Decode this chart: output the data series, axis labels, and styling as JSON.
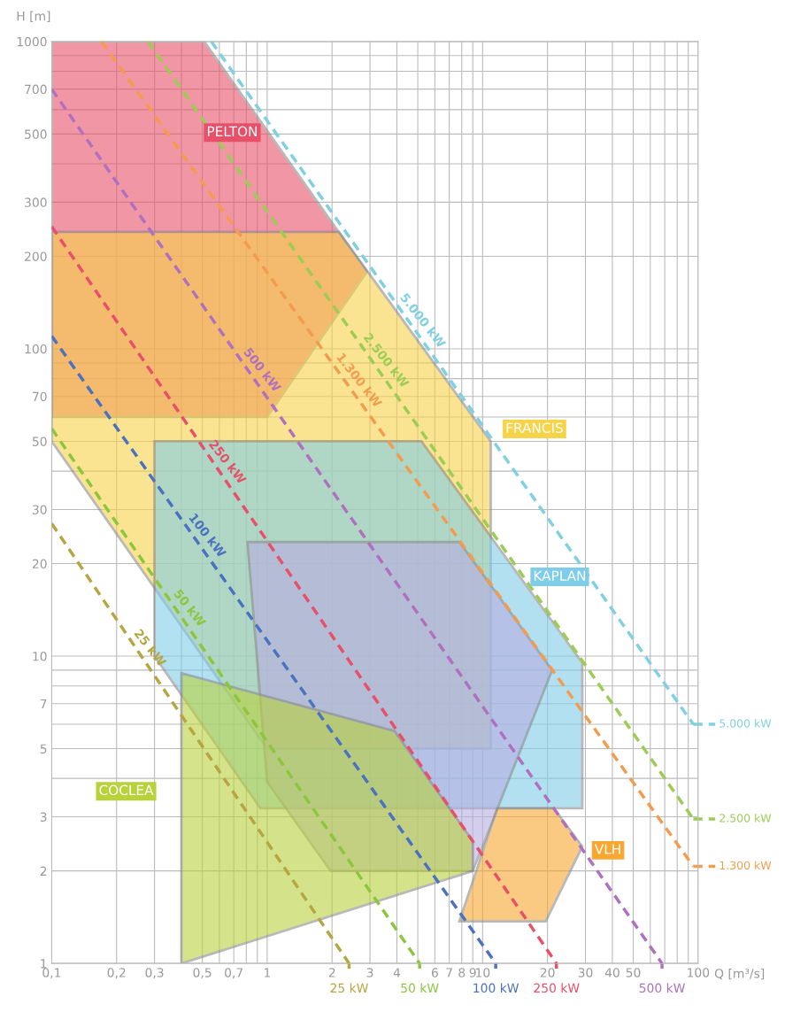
{
  "chart_data": {
    "type": "area",
    "xlabel": "Q [m³/s]",
    "ylabel": "H [m]",
    "log": "xy",
    "grid": true,
    "legend": "right",
    "xlim": [
      0.1,
      100
    ],
    "ylim": [
      1,
      1000
    ],
    "xticks": [
      {
        "value": 0.1,
        "label": "0,1"
      },
      {
        "value": 0.2,
        "label": "0,2"
      },
      {
        "value": 0.3,
        "label": "0,3"
      },
      {
        "value": 0.4,
        "label": null
      },
      {
        "value": 0.5,
        "label": "0,5"
      },
      {
        "value": 0.6,
        "label": null
      },
      {
        "value": 0.7,
        "label": "0,7"
      },
      {
        "value": 0.8,
        "label": null
      },
      {
        "value": 0.9,
        "label": null
      },
      1,
      2,
      3,
      4,
      {
        "value": 5,
        "label": null
      },
      6,
      7,
      8,
      9,
      10,
      20,
      30,
      40,
      50,
      {
        "value": 60,
        "label": null
      },
      {
        "value": 70,
        "label": null
      },
      {
        "value": 80,
        "label": null
      },
      {
        "value": 90,
        "label": null
      },
      100
    ],
    "yticks": [
      1,
      2,
      3,
      {
        "value": 4,
        "label": null
      },
      5,
      {
        "value": 6,
        "label": null
      },
      7,
      {
        "value": 8,
        "label": null
      },
      {
        "value": 9,
        "label": null
      },
      10,
      20,
      30,
      {
        "value": 40,
        "label": null
      },
      50,
      {
        "value": 60,
        "label": null
      },
      70,
      {
        "value": 80,
        "label": null
      },
      {
        "value": 90,
        "label": null
      },
      100,
      200,
      300,
      {
        "value": 400,
        "label": null
      },
      500,
      {
        "value": 600,
        "label": null
      },
      700,
      {
        "value": 800,
        "label": null
      },
      {
        "value": 900,
        "label": null
      },
      1000
    ],
    "series": [
      {
        "name": "PELTON",
        "color": "#e8506a",
        "x": [
          0.1,
          0.51,
          2.9,
          1,
          0.1
        ],
        "values": [
          1000,
          1000,
          178,
          60,
          60
        ]
      },
      {
        "name": "FRANCIS",
        "color": "#f7d34a",
        "x": [
          0.1,
          2.15,
          10.9,
          10.9,
          1,
          0.1
        ],
        "values": [
          240,
          240,
          50,
          5,
          5,
          50
        ]
      },
      {
        "name": "KAPLAN",
        "color": "#7fcde8",
        "x": [
          0.3,
          5.2,
          29,
          29,
          0.93,
          0.3
        ],
        "values": [
          50,
          50,
          9.5,
          3.2,
          3.2,
          10
        ]
      },
      {
        "color": "#b7aee0",
        "x": [
          0.81,
          7.8,
          21,
          9,
          1.97,
          1
        ],
        "values": [
          23.5,
          23.5,
          9,
          2,
          2,
          3.9
        ]
      },
      {
        "name": "COCLEA",
        "color": "#b9d23c",
        "x": [
          0.4,
          3.9,
          9,
          9,
          0.4
        ],
        "values": [
          8.8,
          5.7,
          2.5,
          2,
          1
        ]
      },
      {
        "name": "VLH",
        "color": "#f8a830",
        "x": [
          11.7,
          21.4,
          29,
          19.6,
          7.8
        ],
        "values": [
          3.2,
          3.2,
          2.4,
          1.37,
          1.37
        ]
      },
      {
        "name": "5.000 kW",
        "type": "line",
        "line_style": "dashed",
        "color": "#7fd0e0",
        "x": [
          0.55,
          95
        ],
        "values": [
          1000,
          6
        ]
      },
      {
        "name": "2.500 kW",
        "type": "line",
        "line_style": "dashed",
        "color": "#9ccc55",
        "x": [
          0.28,
          95
        ],
        "values": [
          1000,
          2.95
        ]
      },
      {
        "name": "1.300 kW",
        "type": "line",
        "line_style": "dashed",
        "color": "#f39c50",
        "x": [
          0.17,
          95
        ],
        "values": [
          1000,
          2.07
        ]
      },
      {
        "name": "500 kW",
        "type": "line",
        "line_style": "dashed",
        "color": "#b070c0",
        "x": [
          0.1,
          68
        ],
        "values": [
          700,
          1
        ]
      },
      {
        "name": "250 kW",
        "type": "line",
        "line_style": "dashed",
        "color": "#e8506a",
        "x": [
          0.1,
          22
        ],
        "values": [
          250,
          1
        ]
      },
      {
        "name": "100 kW",
        "type": "line",
        "line_style": "dashed",
        "color": "#4a72c0",
        "x": [
          0.1,
          11.5
        ],
        "values": [
          110,
          1
        ]
      },
      {
        "name": "50 kW",
        "type": "line",
        "line_style": "dashed",
        "color": "#8cc63f",
        "x": [
          0.1,
          5.1
        ],
        "values": [
          55,
          1
        ]
      },
      {
        "name": "25 kW",
        "type": "line",
        "line_style": "dashed",
        "color": "#b5a642",
        "x": [
          0.1,
          2.4
        ],
        "values": [
          27,
          1
        ]
      }
    ],
    "annotations": [
      "5.000 kW",
      "2.500 kW",
      "1.300 kW",
      "500 kW",
      "250 kW",
      "100 kW",
      "50 kW",
      "25 kW"
    ]
  }
}
